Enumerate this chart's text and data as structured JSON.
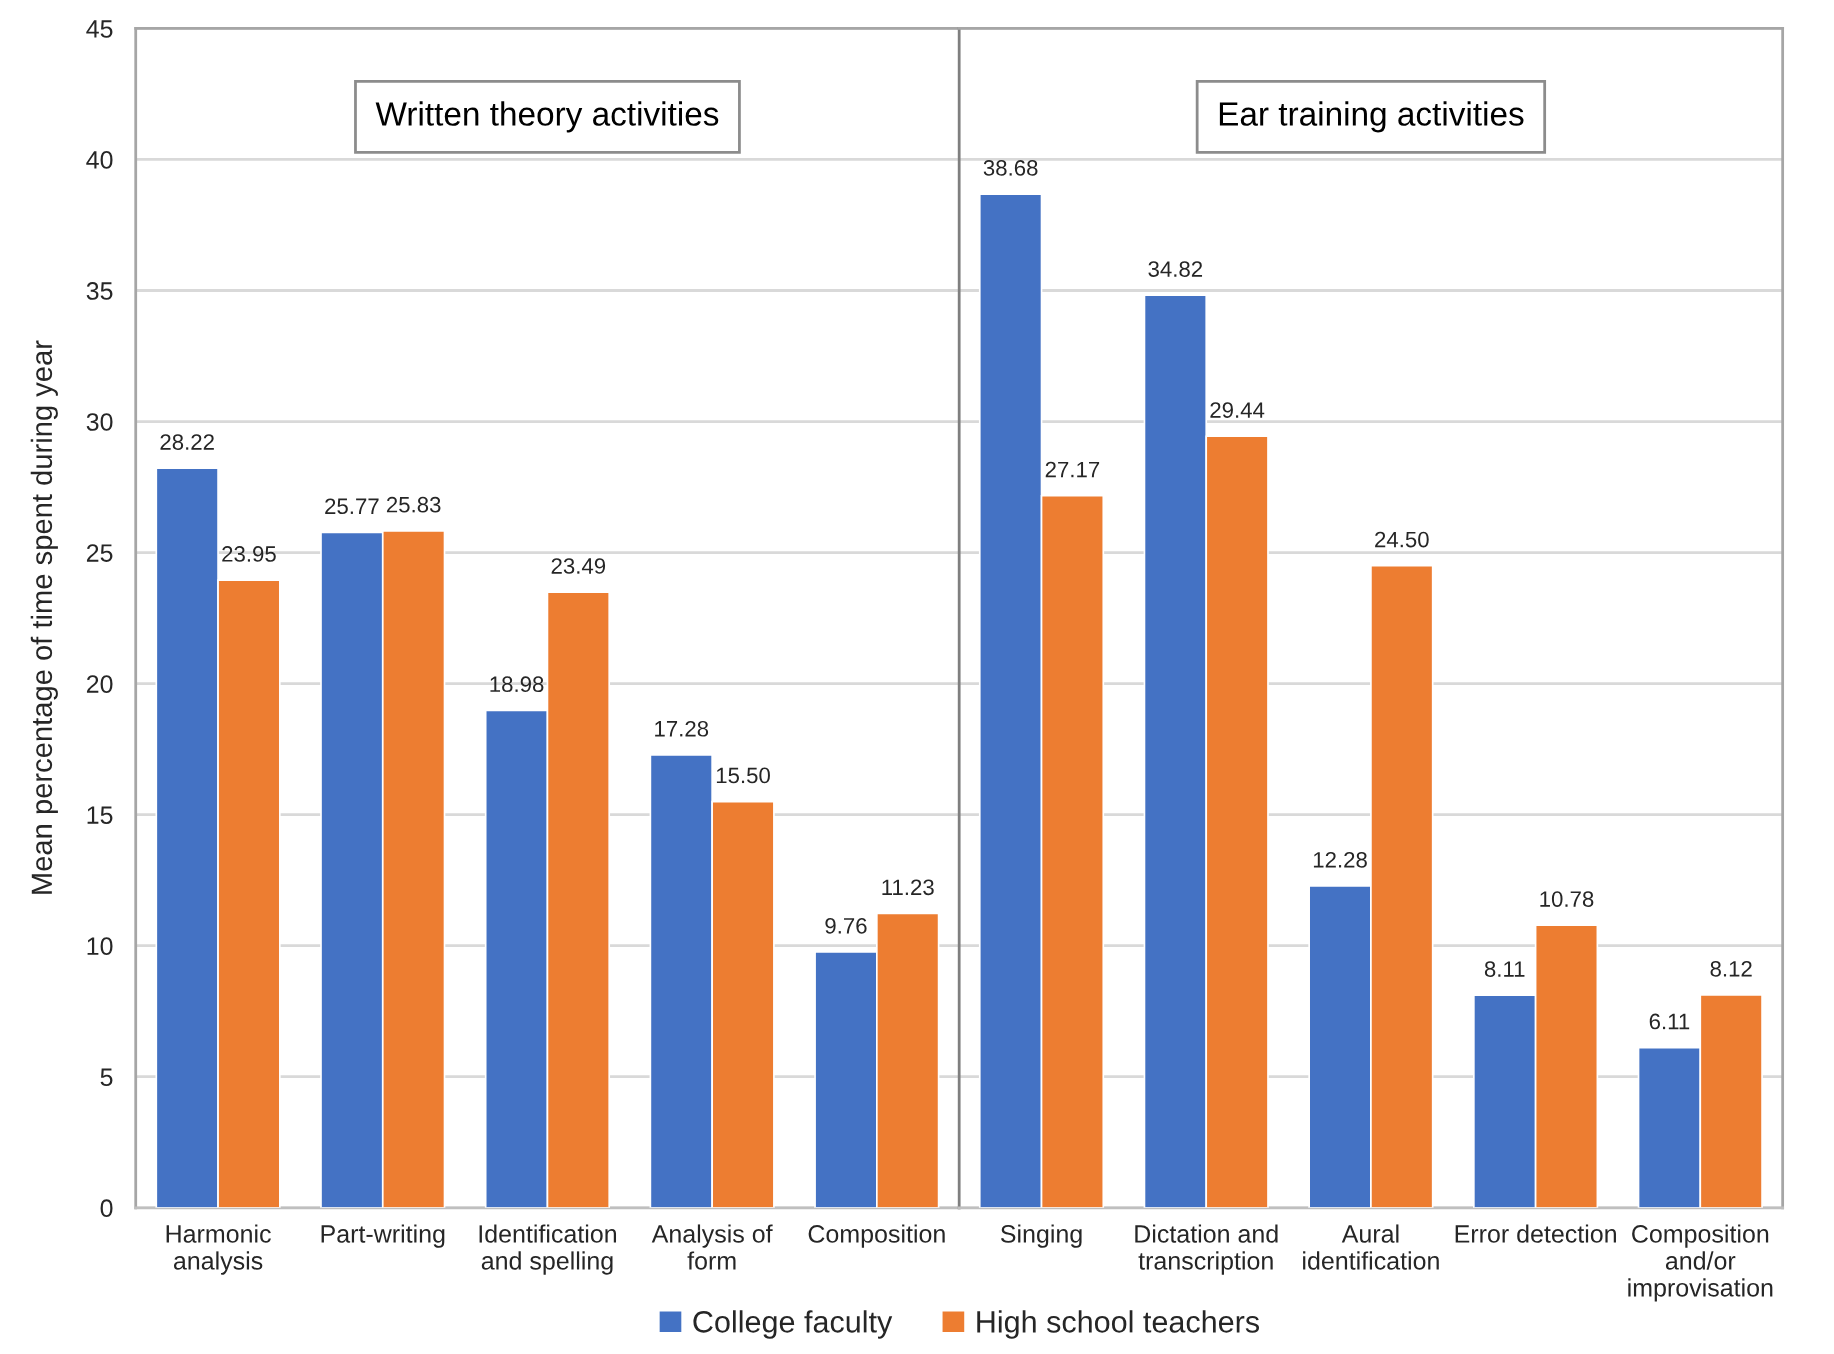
{
  "chart_data": [
    {
      "type": "bar",
      "categories": [
        "Harmonic\nanalysis",
        "Part-writing",
        "Identification\nand spelling",
        "Analysis of\nform",
        "Composition"
      ],
      "series": [
        {
          "name": "College faculty",
          "color": "#4472c4",
          "values": [
            28.22,
            25.77,
            18.98,
            17.28,
            9.76
          ],
          "value_labels": [
            "28.22",
            "25.77",
            "18.98",
            "17.28",
            "9.76"
          ]
        },
        {
          "name": "High school teachers",
          "color": "#ed7d31",
          "values": [
            23.95,
            25.83,
            23.49,
            15.5,
            11.23
          ],
          "value_labels": [
            "23.95",
            "25.83",
            "23.49",
            "15.50",
            "11.23"
          ]
        }
      ],
      "ylabel": "Mean percentage of time spent during year",
      "ylim": [
        0,
        45
      ],
      "yticks": [
        0,
        5,
        10,
        15,
        20,
        25,
        30,
        35,
        40,
        45
      ],
      "grid": "y",
      "legend": "bottom",
      "annotations": [
        "Written theory activities"
      ]
    },
    {
      "type": "bar",
      "categories": [
        "Singing",
        "Dictation and\ntranscription",
        "Aural\nidentification",
        "Error detection",
        "Composition\nand/or\nimprovisation"
      ],
      "series": [
        {
          "color": "#4472c4",
          "values": [
            38.68,
            34.82,
            12.28,
            8.11,
            6.11
          ],
          "value_labels": [
            "38.68",
            "34.82",
            "12.28",
            "8.11",
            "6.11"
          ]
        },
        {
          "color": "#ed7d31",
          "values": [
            27.17,
            29.44,
            24.5,
            10.78,
            8.12
          ],
          "value_labels": [
            "27.17",
            "29.44",
            "24.50",
            "10.78",
            "8.12"
          ]
        }
      ],
      "ylim": [
        0,
        45
      ],
      "yticks": [
        0,
        5,
        10,
        15,
        20,
        25,
        30,
        35,
        40,
        45
      ],
      "grid": "y",
      "tick_labels": "x",
      "annotations": [
        "Ear training activities"
      ]
    }
  ]
}
